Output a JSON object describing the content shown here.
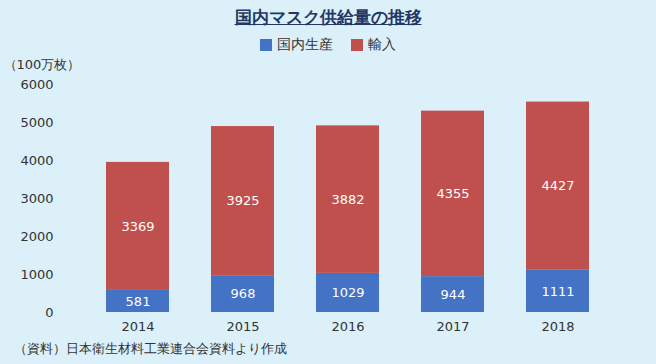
{
  "chart_data": {
    "type": "bar",
    "title": "国内マスク供給量の推移",
    "y_label": "（100万枚）",
    "categories": [
      "2014",
      "2015",
      "2016",
      "2017",
      "2018"
    ],
    "series": [
      {
        "name": "国内生産",
        "color": "#4472c4",
        "values": [
          581,
          968,
          1029,
          944,
          1111
        ]
      },
      {
        "name": "輸入",
        "color": "#c0504d",
        "values": [
          3369,
          3925,
          3882,
          4355,
          4427
        ]
      }
    ],
    "ylim": [
      0,
      6000
    ],
    "yticks": [
      0,
      1000,
      2000,
      3000,
      4000,
      5000,
      6000
    ],
    "stacked": true,
    "data_labels": true,
    "grid": false,
    "legend": "top",
    "caption": "（資料）日本衛生材料工業連合会資料より作成"
  }
}
